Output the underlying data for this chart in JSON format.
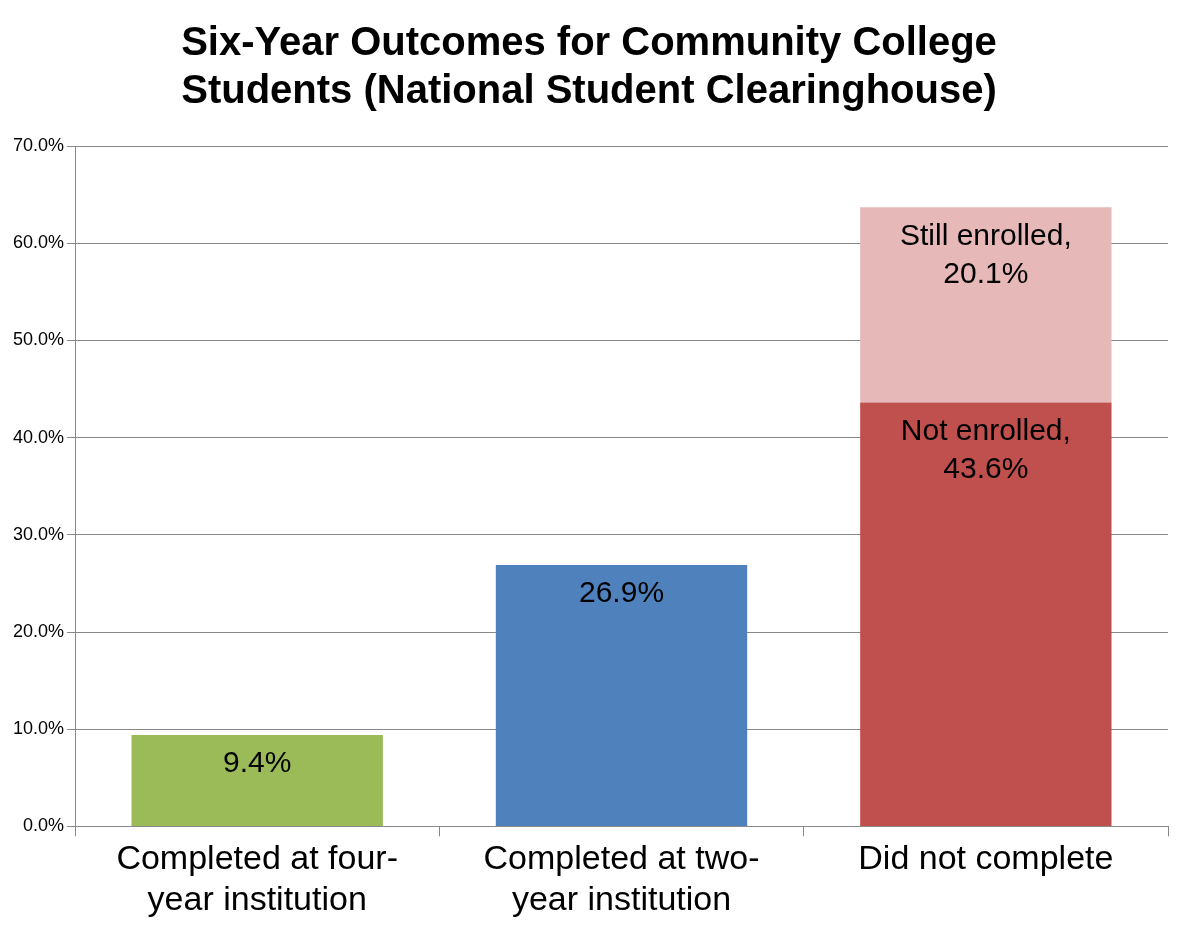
{
  "chart_data": {
    "type": "bar",
    "title": "Six-Year Outcomes for Community College Students (National Student Clearinghouse)",
    "categories": [
      "Completed at four-year institution",
      "Completed at two-year institution",
      "Did not complete"
    ],
    "stacked": true,
    "series": [
      {
        "colors": [
          "#9bbb59",
          "#4f81bd",
          "#c0504d"
        ],
        "values": [
          9.4,
          26.9,
          43.6
        ],
        "value_labels": [
          "9.4%",
          "26.9%",
          "Not enrolled, 43.6%"
        ]
      },
      {
        "color": "#e6b9b8",
        "values": [
          null,
          null,
          20.1
        ],
        "value_labels": [
          null,
          null,
          "Still enrolled, 20.1%"
        ]
      }
    ],
    "ylim": [
      0,
      70
    ],
    "yticks": [
      {
        "value": 0,
        "label": "0.0%"
      },
      {
        "value": 10,
        "label": "10.0%"
      },
      {
        "value": 20,
        "label": "20.0%"
      },
      {
        "value": 30,
        "label": "30.0%"
      },
      {
        "value": 40,
        "label": "40.0%"
      },
      {
        "value": 50,
        "label": "50.0%"
      },
      {
        "value": 60,
        "label": "60.0%"
      },
      {
        "value": 70,
        "label": "70.0%"
      }
    ],
    "grid": "y",
    "legend": false
  }
}
